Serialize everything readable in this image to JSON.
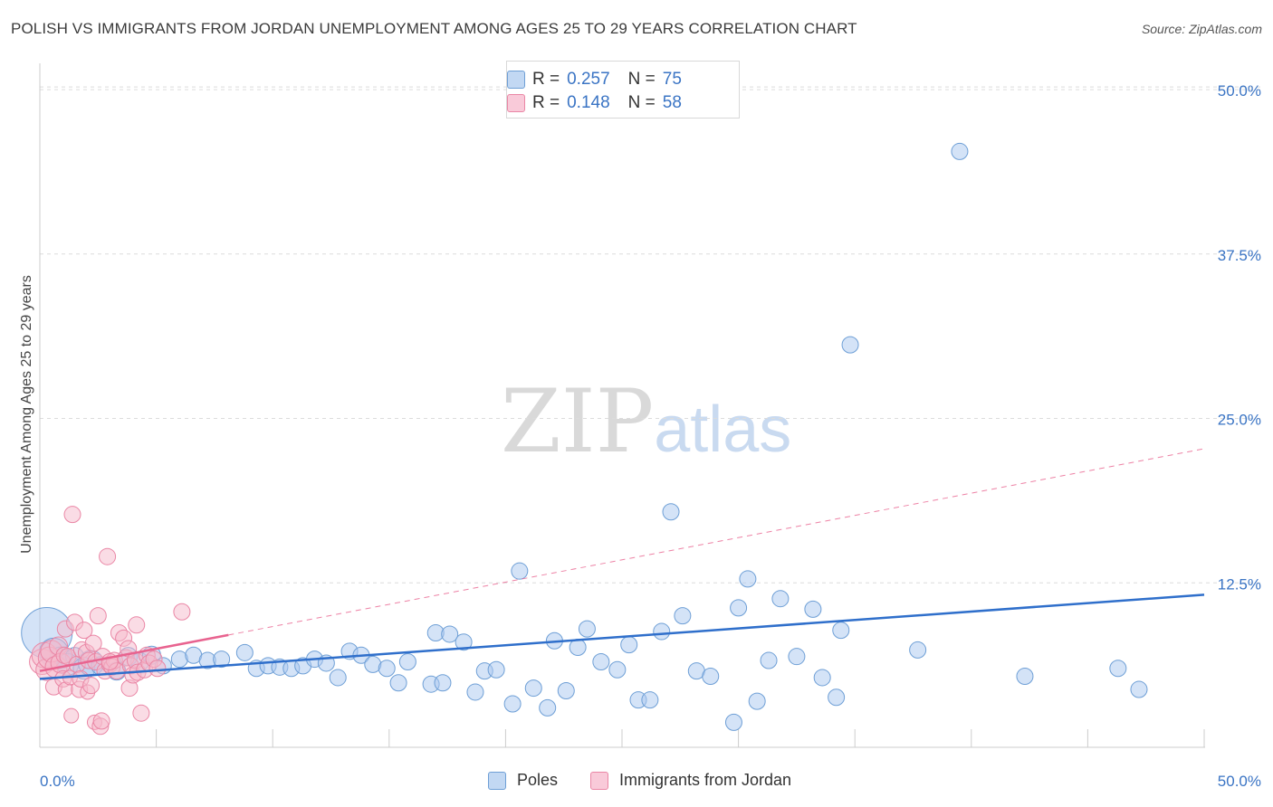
{
  "title": "POLISH VS IMMIGRANTS FROM JORDAN UNEMPLOYMENT AMONG AGES 25 TO 29 YEARS CORRELATION CHART",
  "source": "Source: ZipAtlas.com",
  "watermark": {
    "zip": "ZIP",
    "atlas": "atlas"
  },
  "colors": {
    "poles_fill": "#a9c8ef",
    "poles_stroke": "#6e9fd6",
    "poles_line": "#2f6fcb",
    "jordan_fill": "#f6b9cc",
    "jordan_stroke": "#ea86a5",
    "jordan_line": "#e8638f",
    "axis_text": "#3a74c4",
    "grid": "#dcdcdc"
  },
  "legend_top": [
    {
      "r_label": "R =",
      "r_value": "0.257",
      "n_label": "N =",
      "n_value": "75"
    },
    {
      "r_label": "R =",
      "r_value": "0.148",
      "n_label": "N =",
      "n_value": "58"
    }
  ],
  "legend_bottom": [
    {
      "label": "Poles"
    },
    {
      "label": "Immigrants from Jordan"
    }
  ],
  "chart_data": {
    "type": "scatter",
    "title": "POLISH VS IMMIGRANTS FROM JORDAN UNEMPLOYMENT AMONG AGES 25 TO 29 YEARS CORRELATION CHART",
    "xlabel": "",
    "ylabel": "Unemployment Among Ages 25 to 29 years",
    "xlim": [
      0,
      50
    ],
    "ylim": [
      0,
      52
    ],
    "x_tick_labels": [
      "0.0%",
      "50.0%"
    ],
    "y_ticks": [
      12.5,
      25.0,
      37.5,
      50.0
    ],
    "y_tick_labels": [
      "12.5%",
      "25.0%",
      "37.5%",
      "50.0%"
    ],
    "grid": true,
    "legend_position": "top-center",
    "series": [
      {
        "name": "Poles",
        "trend": {
          "x": [
            0,
            50
          ],
          "y": [
            5.2,
            11.6
          ],
          "style": "solid"
        },
        "points": [
          [
            0.3,
            8.7,
            28
          ],
          [
            0.6,
            7.2,
            16
          ],
          [
            0.9,
            6.8,
            12
          ],
          [
            1.2,
            6.3,
            12
          ],
          [
            1.5,
            6.9,
            10
          ],
          [
            1.9,
            6.0,
            12
          ],
          [
            2.2,
            6.4,
            14
          ],
          [
            2.6,
            6.2,
            10
          ],
          [
            3.3,
            5.8,
            10
          ],
          [
            3.8,
            6.9,
            10
          ],
          [
            4.3,
            6.5,
            10
          ],
          [
            4.8,
            7.0,
            10
          ],
          [
            5.3,
            6.2,
            9
          ],
          [
            6.0,
            6.7,
            9
          ],
          [
            6.6,
            7.0,
            9
          ],
          [
            7.2,
            6.6,
            9
          ],
          [
            7.8,
            6.7,
            9
          ],
          [
            8.8,
            7.2,
            9
          ],
          [
            9.3,
            6.0,
            9
          ],
          [
            9.8,
            6.2,
            9
          ],
          [
            10.3,
            6.1,
            9
          ],
          [
            10.8,
            6.0,
            9
          ],
          [
            11.3,
            6.2,
            9
          ],
          [
            11.8,
            6.7,
            9
          ],
          [
            12.3,
            6.4,
            9
          ],
          [
            12.8,
            5.3,
            9
          ],
          [
            13.3,
            7.3,
            9
          ],
          [
            13.8,
            7.0,
            9
          ],
          [
            14.3,
            6.3,
            9
          ],
          [
            14.9,
            6.0,
            9
          ],
          [
            15.4,
            4.9,
            9
          ],
          [
            15.8,
            6.5,
            9
          ],
          [
            16.8,
            4.8,
            9
          ],
          [
            17.3,
            4.9,
            9
          ],
          [
            17.0,
            8.7,
            9
          ],
          [
            17.6,
            8.6,
            9
          ],
          [
            18.2,
            8.0,
            9
          ],
          [
            18.7,
            4.2,
            9
          ],
          [
            19.1,
            5.8,
            9
          ],
          [
            19.6,
            5.9,
            9
          ],
          [
            20.3,
            3.3,
            9
          ],
          [
            20.6,
            13.4,
            9
          ],
          [
            21.2,
            4.5,
            9
          ],
          [
            21.8,
            3.0,
            9
          ],
          [
            22.1,
            8.1,
            9
          ],
          [
            22.6,
            4.3,
            9
          ],
          [
            23.1,
            7.6,
            9
          ],
          [
            23.5,
            9.0,
            9
          ],
          [
            24.1,
            6.5,
            9
          ],
          [
            24.8,
            5.9,
            9
          ],
          [
            25.3,
            7.8,
            9
          ],
          [
            25.7,
            3.6,
            9
          ],
          [
            26.2,
            3.6,
            9
          ],
          [
            26.7,
            8.8,
            9
          ],
          [
            27.1,
            17.9,
            9
          ],
          [
            27.6,
            10.0,
            9
          ],
          [
            28.2,
            5.8,
            9
          ],
          [
            28.8,
            5.4,
            9
          ],
          [
            29.8,
            1.9,
            9
          ],
          [
            30.0,
            10.6,
            9
          ],
          [
            30.4,
            12.8,
            9
          ],
          [
            30.8,
            3.5,
            9
          ],
          [
            31.3,
            6.6,
            9
          ],
          [
            31.8,
            11.3,
            9
          ],
          [
            32.5,
            6.9,
            9
          ],
          [
            33.2,
            10.5,
            9
          ],
          [
            33.6,
            5.3,
            9
          ],
          [
            34.2,
            3.8,
            9
          ],
          [
            34.4,
            8.9,
            9
          ],
          [
            34.8,
            30.6,
            9
          ],
          [
            37.7,
            7.4,
            9
          ],
          [
            39.5,
            45.3,
            9
          ],
          [
            42.3,
            5.4,
            9
          ],
          [
            46.3,
            6.0,
            9
          ],
          [
            47.2,
            4.4,
            9
          ]
        ]
      },
      {
        "name": "Immigrants from Jordan",
        "trend": {
          "x": [
            0,
            50
          ],
          "y": [
            5.8,
            22.7
          ],
          "solid_until": 8.1
        },
        "points": [
          [
            0.1,
            6.5,
            14
          ],
          [
            0.2,
            7.0,
            14
          ],
          [
            0.3,
            5.9,
            12
          ],
          [
            0.4,
            6.8,
            12
          ],
          [
            0.5,
            7.3,
            12
          ],
          [
            0.6,
            4.6,
            9
          ],
          [
            0.7,
            6.1,
            12
          ],
          [
            0.8,
            7.7,
            10
          ],
          [
            0.9,
            6.4,
            11
          ],
          [
            1.0,
            5.2,
            9
          ],
          [
            1.05,
            7.0,
            9
          ],
          [
            1.1,
            4.4,
            8
          ],
          [
            1.2,
            6.9,
            9
          ],
          [
            1.3,
            5.3,
            8
          ],
          [
            1.35,
            2.4,
            8
          ],
          [
            1.1,
            9.0,
            9
          ],
          [
            1.4,
            17.7,
            9
          ],
          [
            1.5,
            9.5,
            9
          ],
          [
            1.6,
            6.3,
            9
          ],
          [
            1.7,
            4.4,
            9
          ],
          [
            1.75,
            5.2,
            9
          ],
          [
            1.8,
            7.4,
            9
          ],
          [
            1.9,
            8.9,
            9
          ],
          [
            2.0,
            7.2,
            9
          ],
          [
            2.05,
            4.2,
            8
          ],
          [
            2.1,
            6.6,
            9
          ],
          [
            2.2,
            4.7,
            9
          ],
          [
            2.3,
            7.9,
            9
          ],
          [
            2.35,
            1.9,
            8
          ],
          [
            2.4,
            6.5,
            9
          ],
          [
            2.5,
            10.0,
            9
          ],
          [
            2.6,
            1.6,
            9
          ],
          [
            2.65,
            2.0,
            9
          ],
          [
            2.7,
            6.9,
            9
          ],
          [
            2.8,
            5.8,
            9
          ],
          [
            2.9,
            14.5,
            9
          ],
          [
            3.0,
            6.3,
            9
          ],
          [
            3.1,
            6.1,
            9
          ],
          [
            3.2,
            6.6,
            9
          ],
          [
            3.3,
            5.8,
            9
          ],
          [
            3.4,
            8.7,
            9
          ],
          [
            3.6,
            8.3,
            9
          ],
          [
            3.7,
            6.8,
            9
          ],
          [
            3.8,
            7.5,
            9
          ],
          [
            3.85,
            4.5,
            9
          ],
          [
            3.9,
            6.2,
            9
          ],
          [
            4.0,
            5.5,
            9
          ],
          [
            4.1,
            6.6,
            9
          ],
          [
            4.2,
            5.7,
            9
          ],
          [
            4.35,
            2.6,
            9
          ],
          [
            4.5,
            5.9,
            9
          ],
          [
            4.6,
            7.0,
            9
          ],
          [
            4.7,
            6.4,
            9
          ],
          [
            4.9,
            6.7,
            9
          ],
          [
            5.05,
            6.0,
            9
          ],
          [
            3.0,
            6.5,
            9
          ],
          [
            6.1,
            10.3,
            9
          ],
          [
            4.15,
            9.3,
            9
          ]
        ]
      }
    ]
  }
}
